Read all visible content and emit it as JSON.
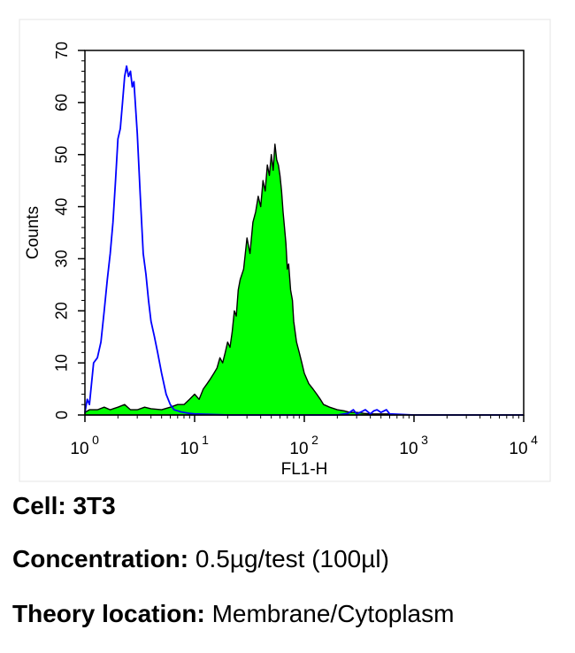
{
  "chart_data": {
    "type": "area",
    "xlabel": "FL1-H",
    "ylabel": "Counts",
    "xscale": "log",
    "xlim": [
      1,
      10000
    ],
    "ylim": [
      0,
      70
    ],
    "grid": false,
    "x_ticks": [
      {
        "base": "10",
        "exp": "0",
        "value": 1
      },
      {
        "base": "10",
        "exp": "1",
        "value": 10
      },
      {
        "base": "10",
        "exp": "2",
        "value": 100
      },
      {
        "base": "10",
        "exp": "3",
        "value": 1000
      },
      {
        "base": "10",
        "exp": "4",
        "value": 10000
      }
    ],
    "y_ticks": [
      "0",
      "10",
      "20",
      "30",
      "40",
      "50",
      "60",
      "70"
    ],
    "series": [
      {
        "style": "outline",
        "color": "#0000ff",
        "x": [
          1.0,
          1.05,
          1.1,
          1.2,
          1.3,
          1.4,
          1.5,
          1.6,
          1.7,
          1.8,
          1.9,
          2.0,
          2.1,
          2.2,
          2.3,
          2.4,
          2.5,
          2.6,
          2.7,
          2.8,
          2.9,
          3.0,
          3.2,
          3.4,
          3.6,
          3.8,
          4.0,
          4.3,
          4.6,
          5.0,
          5.5,
          6.0,
          6.5,
          7.0,
          7.5,
          8.0,
          9.0,
          10.0,
          20,
          50,
          100,
          200,
          250,
          280,
          300,
          330,
          360,
          400,
          430,
          460,
          500,
          560,
          600,
          1000,
          10000
        ],
        "y": [
          0.5,
          3,
          2,
          10,
          11,
          14,
          20,
          26,
          31,
          37,
          45,
          53,
          55,
          60,
          65,
          67,
          65,
          66,
          63,
          64,
          59,
          54,
          42,
          31,
          27,
          22,
          18,
          15,
          12,
          8,
          4,
          2,
          1,
          0.8,
          0.6,
          0.5,
          0.3,
          0.2,
          0,
          0,
          0,
          0,
          0.3,
          1,
          0.2,
          0.6,
          1,
          0.2,
          0.8,
          1,
          0.5,
          1,
          0.2,
          0,
          0
        ]
      },
      {
        "style": "filled",
        "color": "#00ff00",
        "stroke": "#000000",
        "x": [
          1.0,
          1.1,
          1.3,
          1.5,
          1.7,
          2.0,
          2.3,
          2.6,
          3.0,
          3.5,
          4.0,
          5.0,
          6.0,
          7.0,
          8.0,
          9.0,
          10,
          11,
          12,
          13,
          14,
          15,
          16,
          17,
          18,
          19,
          20,
          21,
          22,
          23,
          24,
          25,
          26,
          28,
          30,
          32,
          34,
          36,
          38,
          40,
          42,
          44,
          46,
          48,
          50,
          52,
          54,
          56,
          58,
          60,
          62,
          64,
          66,
          68,
          70,
          72,
          75,
          78,
          80,
          85,
          90,
          95,
          100,
          110,
          120,
          130,
          140,
          150,
          170,
          200,
          230,
          260,
          300,
          350,
          400,
          500,
          600,
          700,
          10000
        ],
        "y": [
          0.5,
          1,
          1,
          1.5,
          1,
          1.5,
          2,
          1,
          1,
          1.5,
          1.2,
          1,
          1.5,
          2,
          2,
          3,
          4,
          3,
          5,
          6,
          7,
          8,
          9,
          11,
          10,
          12,
          14,
          13,
          16,
          20,
          19,
          24,
          26,
          28,
          34,
          31,
          37,
          39,
          42,
          40,
          45,
          43,
          48,
          46,
          50,
          47,
          52,
          49,
          48,
          46,
          43,
          39,
          36,
          33,
          28,
          29,
          24,
          22,
          18,
          14,
          12,
          10,
          8,
          6,
          5,
          4,
          3,
          2,
          1.5,
          1,
          0.8,
          0.5,
          0.5,
          0.3,
          0.2,
          0.2,
          0.2,
          0,
          0
        ]
      }
    ]
  },
  "info": {
    "cell": {
      "label": "Cell:",
      "value": "3T3"
    },
    "concentration": {
      "label": "Concentration:",
      "value": "0.5µg/test (100µl)"
    },
    "location": {
      "label": "Theory location:",
      "value": "Membrane/Cytoplasm"
    }
  }
}
